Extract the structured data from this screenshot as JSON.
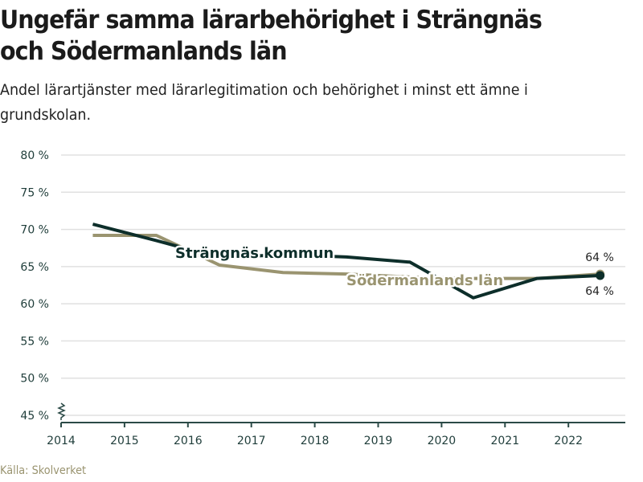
{
  "header": {
    "title_lines": [
      "Ungefär samma lärarbehörighet i Strängnäs",
      "och Södermanlands län"
    ],
    "subtitle_lines": [
      "Andel lärartjänster med lärarlegitimation och behörighet i minst ett ämne i",
      "grundskolan."
    ]
  },
  "footer": {
    "source": "Källa: Skolverket"
  },
  "colors": {
    "strangnas": "#0d2e2a",
    "sodermanland": "#9a9470",
    "grid": "#e0e0e0",
    "axis": "#2b4a47"
  },
  "chart_data": {
    "type": "line",
    "title": "Ungefär samma lärarbehörighet i Strängnäs och Södermanlands län",
    "subtitle": "Andel lärartjänster med lärarlegitimation och behörighet i minst ett ämne i grundskolan.",
    "xlabel": "",
    "ylabel": "",
    "x": [
      2014.5,
      2015.5,
      2016.5,
      2017.5,
      2018.5,
      2019.5,
      2020.5,
      2021.5,
      2022.5
    ],
    "x_ticks": [
      "2014",
      "2015",
      "2016",
      "2017",
      "2018",
      "2019",
      "2020",
      "2021",
      "2022"
    ],
    "x_tick_values": [
      2014,
      2015,
      2016,
      2017,
      2018,
      2019,
      2020,
      2021,
      2022
    ],
    "xlim": [
      2014,
      2023.2
    ],
    "y_ticks": [
      "45 %",
      "50 %",
      "55 %",
      "60 %",
      "65 %",
      "70 %",
      "75 %",
      "80 %"
    ],
    "y_tick_values": [
      45,
      50,
      55,
      60,
      65,
      70,
      75,
      80
    ],
    "ylim": [
      45,
      80
    ],
    "y_axis_break": true,
    "grid": true,
    "legend": "inline labels",
    "series": [
      {
        "name": "Södermanlands län",
        "key": "sodermanland",
        "values": [
          69.2,
          69.2,
          65.2,
          64.2,
          64.0,
          63.6,
          63.4,
          63.4,
          64.0
        ],
        "end_label": "64 %"
      },
      {
        "name": "Strängnäs kommun",
        "key": "strangnas",
        "values": [
          70.7,
          68.5,
          66.2,
          66.6,
          66.3,
          65.6,
          60.8,
          63.4,
          63.8
        ],
        "end_label": "64 %"
      }
    ],
    "source": "Källa: Skolverket"
  }
}
